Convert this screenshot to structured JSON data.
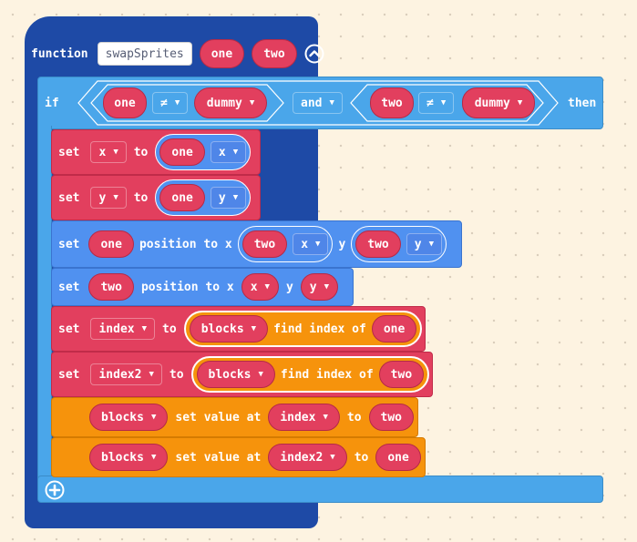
{
  "func": {
    "keyword": "function",
    "name": "swapSprites",
    "param1": "one",
    "param2": "two",
    "collapse_icon": "chevron-up-circle-icon"
  },
  "cond": {
    "keyword_if": "if",
    "left_var": "one",
    "left_op": "≠",
    "left_rhs": "dummy",
    "join": "and",
    "right_var": "two",
    "right_op": "≠",
    "right_rhs": "dummy",
    "keyword_then": "then"
  },
  "s1": {
    "set": "set",
    "var": "x",
    "to": "to",
    "obj": "one",
    "prop": "x"
  },
  "s2": {
    "set": "set",
    "var": "y",
    "to": "to",
    "obj": "one",
    "prop": "y"
  },
  "s3": {
    "set": "set",
    "sprite": "one",
    "text": "position to x",
    "xobj": "two",
    "xprop": "x",
    "y_label": "y",
    "yobj": "two",
    "yprop": "y"
  },
  "s4": {
    "set": "set",
    "sprite": "two",
    "text": "position to x",
    "xvar": "x",
    "y_label": "y",
    "yvar": "y"
  },
  "s5": {
    "set": "set",
    "var": "index",
    "to": "to",
    "arr": "blocks",
    "find": "find index of",
    "val": "one"
  },
  "s6": {
    "set": "set",
    "var": "index2",
    "to": "to",
    "arr": "blocks",
    "find": "find index of",
    "val": "two"
  },
  "s7": {
    "arr": "blocks",
    "text": "set value at",
    "idx": "index",
    "to": "to",
    "val": "two"
  },
  "s8": {
    "arr": "blocks",
    "text": "set value at",
    "idx": "index2",
    "to": "to",
    "val": "one"
  },
  "add_icon": "plus-circle-icon",
  "dropdown_caret": "▼"
}
